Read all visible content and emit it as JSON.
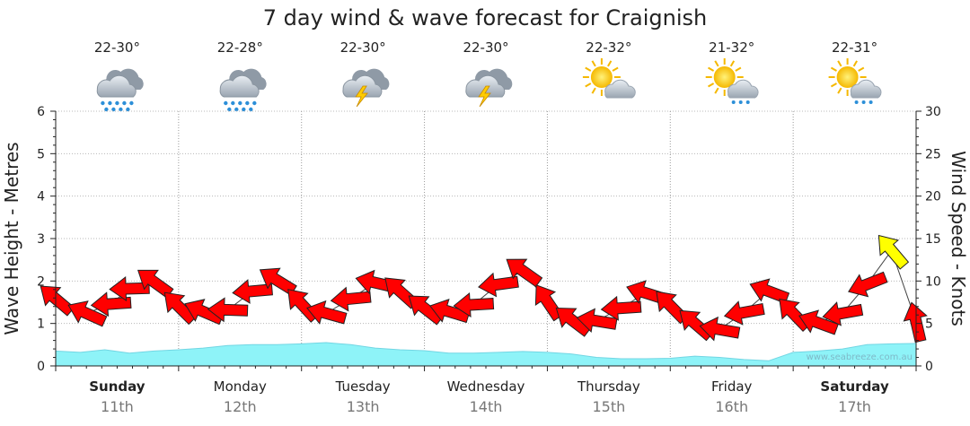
{
  "title": "7 day wind & wave forecast for Craignish",
  "watermark": "www.seabreeze.com.au",
  "colors": {
    "wave_fill": "#8ef3f8",
    "wave_line": "#72d6e3",
    "arrow_strong": "#ff0000",
    "arrow_light": "#ffff00"
  },
  "days": [
    {
      "name": "Sunday",
      "date": "11th",
      "bold": true,
      "temp": "22-30°",
      "icon": "rain-cloud-icon"
    },
    {
      "name": "Monday",
      "date": "12th",
      "bold": false,
      "temp": "22-28°",
      "icon": "rain-cloud-icon"
    },
    {
      "name": "Tuesday",
      "date": "13th",
      "bold": false,
      "temp": "22-30°",
      "icon": "thunderstorm-icon"
    },
    {
      "name": "Wednesday",
      "date": "14th",
      "bold": false,
      "temp": "22-30°",
      "icon": "thunderstorm-icon"
    },
    {
      "name": "Thursday",
      "date": "15th",
      "bold": false,
      "temp": "22-32°",
      "icon": "sun-cloud-icon"
    },
    {
      "name": "Friday",
      "date": "16th",
      "bold": false,
      "temp": "21-32°",
      "icon": "sun-cloud-rain-icon"
    },
    {
      "name": "Saturday",
      "date": "17th",
      "bold": true,
      "temp": "22-31°",
      "icon": "sun-cloud-rain-icon"
    }
  ],
  "chart_data": {
    "type": "area",
    "title": "7 day wind & wave forecast for Craignish",
    "ylabel_left": "Wave Height - Metres",
    "ylabel_right": "Wind Speed - Knots",
    "yticks_left": [
      "0",
      "1",
      "2",
      "3",
      "4",
      "5",
      "6"
    ],
    "yticks_right": [
      "0",
      "5",
      "10",
      "15",
      "20",
      "25",
      "30"
    ],
    "ylim_left": [
      0,
      6
    ],
    "ylim_right": [
      0,
      30
    ],
    "x_days": 7,
    "grid": true,
    "wave_height_m": [
      [
        0.0,
        0.35
      ],
      [
        0.2,
        0.32
      ],
      [
        0.4,
        0.38
      ],
      [
        0.6,
        0.3
      ],
      [
        0.8,
        0.35
      ],
      [
        1.0,
        0.38
      ],
      [
        1.2,
        0.42
      ],
      [
        1.4,
        0.48
      ],
      [
        1.6,
        0.5
      ],
      [
        1.8,
        0.5
      ],
      [
        2.0,
        0.52
      ],
      [
        2.2,
        0.55
      ],
      [
        2.4,
        0.5
      ],
      [
        2.6,
        0.42
      ],
      [
        2.8,
        0.38
      ],
      [
        3.0,
        0.36
      ],
      [
        3.2,
        0.3
      ],
      [
        3.4,
        0.3
      ],
      [
        3.6,
        0.32
      ],
      [
        3.8,
        0.34
      ],
      [
        4.0,
        0.32
      ],
      [
        4.2,
        0.28
      ],
      [
        4.4,
        0.2
      ],
      [
        4.6,
        0.17
      ],
      [
        4.8,
        0.17
      ],
      [
        5.0,
        0.18
      ],
      [
        5.2,
        0.23
      ],
      [
        5.4,
        0.2
      ],
      [
        5.6,
        0.15
      ],
      [
        5.8,
        0.12
      ],
      [
        6.0,
        0.32
      ],
      [
        6.2,
        0.35
      ],
      [
        6.4,
        0.4
      ],
      [
        6.6,
        0.5
      ],
      [
        6.8,
        0.52
      ],
      [
        7.0,
        0.53
      ]
    ],
    "wind_knots": [
      [
        0.0,
        7.9
      ],
      [
        0.25,
        6.2
      ],
      [
        0.45,
        7.3
      ],
      [
        0.6,
        9.1
      ],
      [
        0.8,
        9.9
      ],
      [
        1.0,
        7.0
      ],
      [
        1.2,
        6.4
      ],
      [
        1.4,
        6.6
      ],
      [
        1.6,
        8.8
      ],
      [
        1.8,
        10.1
      ],
      [
        2.0,
        7.3
      ],
      [
        2.2,
        6.2
      ],
      [
        2.4,
        7.9
      ],
      [
        2.6,
        9.8
      ],
      [
        2.8,
        8.8
      ],
      [
        3.0,
        6.8
      ],
      [
        3.2,
        6.4
      ],
      [
        3.4,
        7.2
      ],
      [
        3.6,
        9.6
      ],
      [
        3.8,
        11.2
      ],
      [
        4.0,
        7.6
      ],
      [
        4.2,
        5.4
      ],
      [
        4.4,
        5.3
      ],
      [
        4.6,
        6.8
      ],
      [
        4.8,
        8.6
      ],
      [
        5.0,
        7.1
      ],
      [
        5.2,
        5.0
      ],
      [
        5.4,
        4.3
      ],
      [
        5.6,
        6.3
      ],
      [
        5.8,
        8.8
      ],
      [
        6.0,
        6.2
      ],
      [
        6.2,
        5.1
      ],
      [
        6.4,
        6.2
      ],
      [
        6.6,
        9.6
      ],
      [
        6.8,
        13.6
      ],
      [
        7.0,
        5.2
      ]
    ]
  }
}
